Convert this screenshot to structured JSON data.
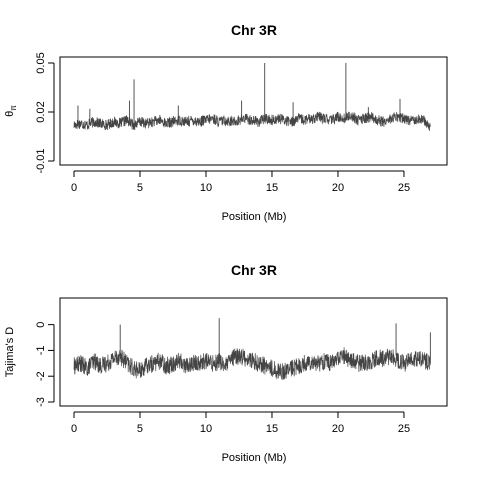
{
  "chart_data": [
    {
      "type": "line",
      "title": "Chr 3R",
      "xlabel": "Position (Mb)",
      "ylabel": "θπ",
      "ylabel_main": "θ",
      "ylabel_sub": "π",
      "xlim": [
        0,
        27.2
      ],
      "ylim": [
        -0.01,
        0.05
      ],
      "xticks": [
        0,
        5,
        10,
        15,
        20,
        25
      ],
      "yticks": [
        -0.01,
        0.02,
        0.05
      ],
      "ytick_labels": [
        "-0.01",
        "0.02",
        "0.05"
      ],
      "grid": false,
      "line_color": "#444444",
      "series": [
        {
          "x": [
            0.0,
            0.5,
            1.0,
            1.5,
            2.0,
            2.5,
            3.0,
            3.5,
            4.0,
            4.5,
            5.0,
            5.5,
            6.0,
            6.5,
            7.0,
            7.5,
            8.0,
            8.5,
            9.0,
            9.5,
            10.0,
            10.5,
            11.0,
            11.5,
            12.0,
            12.5,
            13.0,
            13.5,
            14.0,
            14.5,
            15.0,
            15.5,
            16.0,
            16.5,
            17.0,
            17.5,
            18.0,
            18.5,
            19.0,
            19.5,
            20.0,
            20.5,
            21.0,
            21.5,
            22.0,
            22.5,
            23.0,
            23.5,
            24.0,
            24.5,
            25.0,
            25.5,
            26.0,
            26.5,
            27.0
          ],
          "values": [
            0.012,
            0.013,
            0.012,
            0.014,
            0.013,
            0.012,
            0.014,
            0.013,
            0.015,
            0.012,
            0.014,
            0.013,
            0.014,
            0.015,
            0.013,
            0.014,
            0.015,
            0.014,
            0.015,
            0.014,
            0.015,
            0.016,
            0.014,
            0.015,
            0.014,
            0.015,
            0.016,
            0.015,
            0.014,
            0.016,
            0.015,
            0.016,
            0.015,
            0.014,
            0.016,
            0.015,
            0.016,
            0.017,
            0.016,
            0.015,
            0.017,
            0.016,
            0.018,
            0.015,
            0.016,
            0.017,
            0.015,
            0.014,
            0.016,
            0.017,
            0.016,
            0.015,
            0.016,
            0.015,
            0.011
          ]
        }
      ],
      "peaks": [
        {
          "x": 0.3,
          "y": 0.024
        },
        {
          "x": 1.2,
          "y": 0.022
        },
        {
          "x": 4.2,
          "y": 0.027
        },
        {
          "x": 4.55,
          "y": 0.04
        },
        {
          "x": 7.9,
          "y": 0.024
        },
        {
          "x": 12.7,
          "y": 0.027
        },
        {
          "x": 14.45,
          "y": 0.05
        },
        {
          "x": 16.6,
          "y": 0.026
        },
        {
          "x": 20.6,
          "y": 0.05
        },
        {
          "x": 22.3,
          "y": 0.023
        },
        {
          "x": 24.7,
          "y": 0.028
        }
      ]
    },
    {
      "type": "line",
      "title": "Chr 3R",
      "xlabel": "Position (Mb)",
      "ylabel": "Tajima's D",
      "xlim": [
        0,
        27.2
      ],
      "ylim": [
        -3,
        0.8
      ],
      "xticks": [
        0,
        5,
        10,
        15,
        20,
        25
      ],
      "yticks": [
        -3,
        -2,
        -1,
        0
      ],
      "ytick_labels": [
        "-3",
        "-2",
        "-1",
        "0"
      ],
      "grid": false,
      "line_color": "#444444",
      "series": [
        {
          "x": [
            0.0,
            0.5,
            1.0,
            1.5,
            2.0,
            2.5,
            3.0,
            3.5,
            4.0,
            4.5,
            5.0,
            5.5,
            6.0,
            6.5,
            7.0,
            7.5,
            8.0,
            8.5,
            9.0,
            9.5,
            10.0,
            10.5,
            11.0,
            11.5,
            12.0,
            12.5,
            13.0,
            13.5,
            14.0,
            14.5,
            15.0,
            15.5,
            16.0,
            16.5,
            17.0,
            17.5,
            18.0,
            18.5,
            19.0,
            19.5,
            20.0,
            20.5,
            21.0,
            21.5,
            22.0,
            22.5,
            23.0,
            23.5,
            24.0,
            24.5,
            25.0,
            25.5,
            26.0,
            26.5,
            27.0
          ],
          "values": [
            -1.6,
            -1.5,
            -1.7,
            -1.4,
            -1.6,
            -1.5,
            -1.3,
            -1.2,
            -1.5,
            -1.7,
            -1.8,
            -1.6,
            -1.5,
            -1.4,
            -1.6,
            -1.5,
            -1.4,
            -1.6,
            -1.5,
            -1.5,
            -1.4,
            -1.5,
            -1.4,
            -1.6,
            -1.3,
            -1.2,
            -1.3,
            -1.4,
            -1.5,
            -1.6,
            -1.7,
            -1.8,
            -1.8,
            -1.7,
            -1.6,
            -1.5,
            -1.4,
            -1.5,
            -1.4,
            -1.5,
            -1.3,
            -1.2,
            -1.4,
            -1.5,
            -1.5,
            -1.4,
            -1.3,
            -1.3,
            -1.2,
            -1.4,
            -1.5,
            -1.4,
            -1.3,
            -1.4,
            -1.5
          ]
        }
      ],
      "peaks": [
        {
          "x": 3.5,
          "y": 0.0
        },
        {
          "x": 11.0,
          "y": 0.25
        },
        {
          "x": 24.4,
          "y": 0.05
        },
        {
          "x": 27.0,
          "y": -0.3
        }
      ]
    }
  ]
}
